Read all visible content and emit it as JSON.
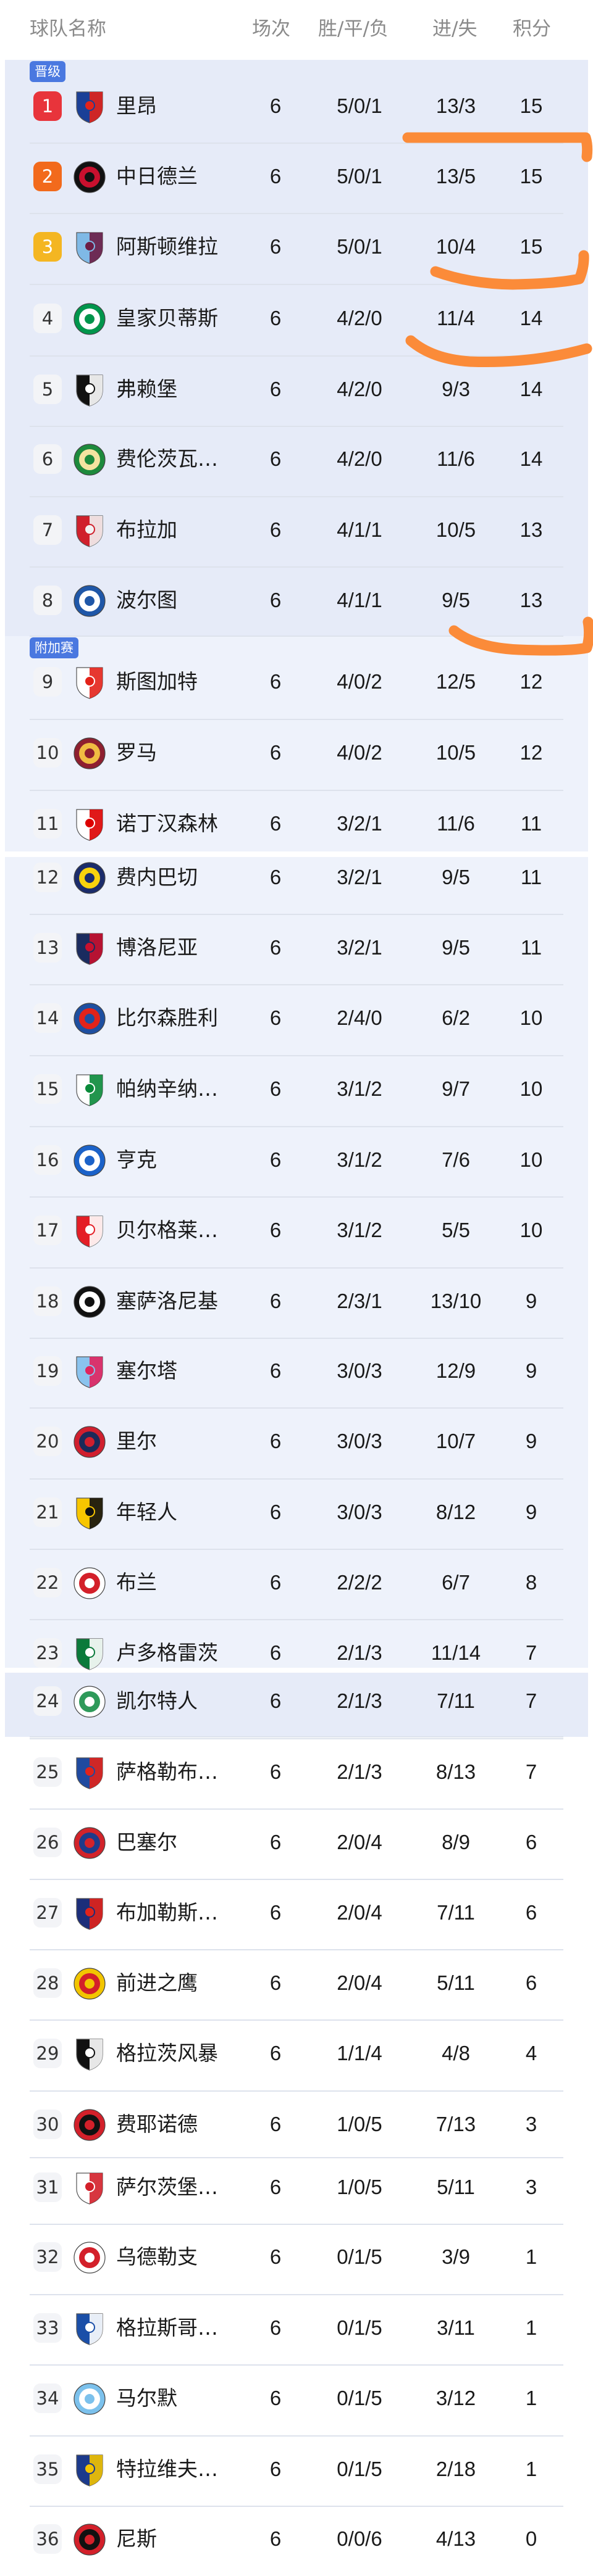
{
  "header": {
    "team": "球队名称",
    "played": "场次",
    "wdl": "胜/平/负",
    "goals": "进/失",
    "points": "积分"
  },
  "zones": {
    "promotion": "晋级",
    "playoff": "附加赛"
  },
  "colors": {
    "rank1": "#e8343b",
    "rank2": "#f26a1c",
    "rank3": "#f4b622",
    "tag": "#4a78e0",
    "zone_dark": "#e6ebf8",
    "zone_light": "#eef2fb",
    "annotation": "#fb8b39"
  },
  "teams": [
    {
      "rank": "1",
      "name": "里昂",
      "played": "6",
      "wdl": "5/0/1",
      "goals": "13/3",
      "points": "15",
      "logo": [
        "#1a3f97",
        "#e2231a"
      ]
    },
    {
      "rank": "2",
      "name": "中日德兰",
      "played": "6",
      "wdl": "5/0/1",
      "goals": "13/5",
      "points": "15",
      "logo": [
        "#111111",
        "#c8102e"
      ]
    },
    {
      "rank": "3",
      "name": "阿斯顿维拉",
      "played": "6",
      "wdl": "5/0/1",
      "goals": "10/4",
      "points": "15",
      "logo": [
        "#7fb9e6",
        "#6c1d45"
      ]
    },
    {
      "rank": "4",
      "name": "皇家贝蒂斯",
      "played": "6",
      "wdl": "4/2/0",
      "goals": "11/4",
      "points": "14",
      "logo": [
        "#00954c",
        "#ffffff"
      ]
    },
    {
      "rank": "5",
      "name": "弗赖堡",
      "played": "6",
      "wdl": "4/2/0",
      "goals": "9/3",
      "points": "14",
      "logo": [
        "#111111",
        "#ffffff"
      ]
    },
    {
      "rank": "6",
      "name": "费伦茨瓦…",
      "played": "6",
      "wdl": "4/2/0",
      "goals": "11/6",
      "points": "14",
      "logo": [
        "#1d8a3c",
        "#f4e3a0"
      ]
    },
    {
      "rank": "7",
      "name": "布拉加",
      "played": "6",
      "wdl": "4/1/1",
      "goals": "10/5",
      "points": "13",
      "logo": [
        "#d0202c",
        "#f2f2f2"
      ]
    },
    {
      "rank": "8",
      "name": "波尔图",
      "played": "6",
      "wdl": "4/1/1",
      "goals": "9/5",
      "points": "13",
      "logo": [
        "#1f57a8",
        "#ffffff"
      ]
    },
    {
      "rank": "9",
      "name": "斯图加特",
      "played": "6",
      "wdl": "4/0/2",
      "goals": "12/5",
      "points": "12",
      "logo": [
        "#ffffff",
        "#e32219"
      ]
    },
    {
      "rank": "10",
      "name": "罗马",
      "played": "6",
      "wdl": "4/0/2",
      "goals": "10/5",
      "points": "12",
      "logo": [
        "#8e1f2f",
        "#f0bc42"
      ]
    },
    {
      "rank": "11",
      "name": "诺丁汉森林",
      "played": "6",
      "wdl": "3/2/1",
      "goals": "11/6",
      "points": "11",
      "logo": [
        "#ffffff",
        "#dd0000"
      ]
    },
    {
      "rank": "12",
      "name": "费内巴切",
      "played": "6",
      "wdl": "3/2/1",
      "goals": "9/5",
      "points": "11",
      "logo": [
        "#1b2c6b",
        "#f8d20d"
      ]
    },
    {
      "rank": "13",
      "name": "博洛尼亚",
      "played": "6",
      "wdl": "3/2/1",
      "goals": "9/5",
      "points": "11",
      "logo": [
        "#1a2b5f",
        "#c8102e"
      ]
    },
    {
      "rank": "14",
      "name": "比尔森胜利",
      "played": "6",
      "wdl": "2/4/0",
      "goals": "6/2",
      "points": "10",
      "logo": [
        "#1e4fa0",
        "#e2231a"
      ]
    },
    {
      "rank": "15",
      "name": "帕纳辛纳…",
      "played": "6",
      "wdl": "3/1/2",
      "goals": "9/7",
      "points": "10",
      "logo": [
        "#ffffff",
        "#0a8a3a"
      ]
    },
    {
      "rank": "16",
      "name": "亨克",
      "played": "6",
      "wdl": "3/1/2",
      "goals": "7/6",
      "points": "10",
      "logo": [
        "#1b62c9",
        "#ffffff"
      ]
    },
    {
      "rank": "17",
      "name": "贝尔格莱…",
      "played": "6",
      "wdl": "3/1/2",
      "goals": "5/5",
      "points": "10",
      "logo": [
        "#e41e26",
        "#ffffff"
      ]
    },
    {
      "rank": "18",
      "name": "塞萨洛尼基",
      "played": "6",
      "wdl": "2/3/1",
      "goals": "13/10",
      "points": "9",
      "logo": [
        "#111111",
        "#ffffff"
      ]
    },
    {
      "rank": "19",
      "name": "塞尔塔",
      "played": "6",
      "wdl": "3/0/3",
      "goals": "12/9",
      "points": "9",
      "logo": [
        "#8ac3ee",
        "#e0245e"
      ]
    },
    {
      "rank": "20",
      "name": "里尔",
      "played": "6",
      "wdl": "3/0/3",
      "goals": "10/7",
      "points": "9",
      "logo": [
        "#d01f2e",
        "#1c2a59"
      ]
    },
    {
      "rank": "21",
      "name": "年轻人",
      "played": "6",
      "wdl": "3/0/3",
      "goals": "8/12",
      "points": "9",
      "logo": [
        "#f8c600",
        "#111111"
      ]
    },
    {
      "rank": "22",
      "name": "布兰",
      "played": "6",
      "wdl": "2/2/2",
      "goals": "6/7",
      "points": "8",
      "logo": [
        "#ffffff",
        "#d3202a"
      ]
    },
    {
      "rank": "23",
      "name": "卢多格雷茨",
      "played": "6",
      "wdl": "2/1/3",
      "goals": "11/14",
      "points": "7",
      "logo": [
        "#0b7a3b",
        "#ffffff"
      ]
    },
    {
      "rank": "24",
      "name": "凯尔特人",
      "played": "6",
      "wdl": "2/1/3",
      "goals": "7/11",
      "points": "7",
      "logo": [
        "#ffffff",
        "#2e9a5a"
      ]
    },
    {
      "rank": "25",
      "name": "萨格勒布…",
      "played": "6",
      "wdl": "2/1/3",
      "goals": "8/13",
      "points": "7",
      "logo": [
        "#1f4aa0",
        "#e2231a"
      ]
    },
    {
      "rank": "26",
      "name": "巴塞尔",
      "played": "6",
      "wdl": "2/0/4",
      "goals": "8/9",
      "points": "6",
      "logo": [
        "#d2232a",
        "#1e3b8a"
      ]
    },
    {
      "rank": "27",
      "name": "布加勒斯…",
      "played": "6",
      "wdl": "2/0/4",
      "goals": "7/11",
      "points": "6",
      "logo": [
        "#1c2e7a",
        "#e2231a"
      ]
    },
    {
      "rank": "28",
      "name": "前进之鹰",
      "played": "6",
      "wdl": "2/0/4",
      "goals": "5/11",
      "points": "6",
      "logo": [
        "#f2c500",
        "#d3202a"
      ]
    },
    {
      "rank": "29",
      "name": "格拉茨风暴",
      "played": "6",
      "wdl": "1/1/4",
      "goals": "4/8",
      "points": "4",
      "logo": [
        "#111111",
        "#ffffff"
      ]
    },
    {
      "rank": "30",
      "name": "费耶诺德",
      "played": "6",
      "wdl": "1/0/5",
      "goals": "7/13",
      "points": "3",
      "logo": [
        "#d3202a",
        "#111111"
      ]
    },
    {
      "rank": "31",
      "name": "萨尔茨堡…",
      "played": "6",
      "wdl": "1/0/5",
      "goals": "5/11",
      "points": "3",
      "logo": [
        "#ffffff",
        "#d3202a"
      ]
    },
    {
      "rank": "32",
      "name": "乌德勒支",
      "played": "6",
      "wdl": "0/1/5",
      "goals": "3/9",
      "points": "1",
      "logo": [
        "#ffffff",
        "#d3202a"
      ]
    },
    {
      "rank": "33",
      "name": "格拉斯哥…",
      "played": "6",
      "wdl": "0/1/5",
      "goals": "3/11",
      "points": "1",
      "logo": [
        "#1b4fa8",
        "#ffffff"
      ]
    },
    {
      "rank": "34",
      "name": "马尔默",
      "played": "6",
      "wdl": "0/1/5",
      "goals": "3/12",
      "points": "1",
      "logo": [
        "#7cc1ec",
        "#ffffff"
      ]
    },
    {
      "rank": "35",
      "name": "特拉维夫…",
      "played": "6",
      "wdl": "0/1/5",
      "goals": "2/18",
      "points": "1",
      "logo": [
        "#1c3a8c",
        "#f4c400"
      ]
    },
    {
      "rank": "36",
      "name": "尼斯",
      "played": "6",
      "wdl": "0/0/6",
      "goals": "4/13",
      "points": "0",
      "logo": [
        "#d3202a",
        "#111111"
      ]
    }
  ]
}
